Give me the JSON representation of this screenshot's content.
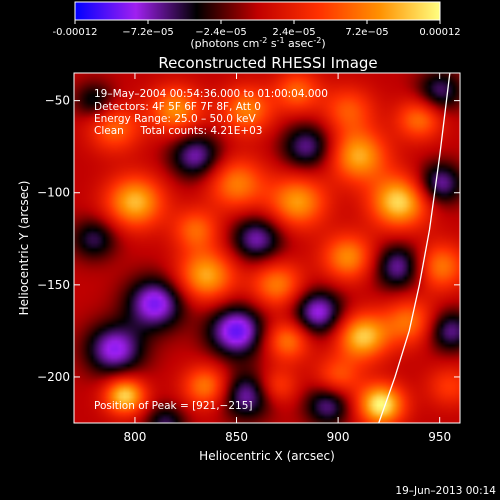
{
  "chart_data": {
    "type": "heatmap",
    "title": "Reconstructed RHESSI Image",
    "xlabel": "Heliocentric X (arcsec)",
    "ylabel": "Heliocentric Y (arcsec)",
    "xlim": [
      770,
      960
    ],
    "ylim": [
      -225,
      -35
    ],
    "x_ticks": [
      800,
      850,
      900,
      950
    ],
    "y_ticks": [
      -50,
      -100,
      -150,
      -200
    ],
    "colorbar": {
      "min": -0.00012,
      "max": 0.00012,
      "tick_labels": [
        "-0.00012",
        "−7.2e−05",
        "−2.4e−05",
        "2.4e−05",
        "7.2e−05",
        "0.00012"
      ],
      "units_label": "(photons cm",
      "units_exp1": "-2",
      "units_mid": " s",
      "units_exp2": "-1",
      "units_end": " asec",
      "units_exp3": "-2",
      "units_close": ")"
    },
    "annotations": [
      "19–May–2004 00:54:36.000 to 01:00:04.000",
      "Detectors: 4F 5F 6F 7F 8F, Att 0",
      "Energy Range: 25.0 – 50.0 keV",
      "Clean     Total counts: 4.21E+03"
    ],
    "peak_label": "Position of Peak = [921,−215]",
    "peak": [
      921,
      -215
    ],
    "footer_date": "19–Jun–2013 00:14",
    "colormap": [
      "#0000ff",
      "#a020f0",
      "#000000",
      "#c00000",
      "#ff3000",
      "#ff9000",
      "#ffff80"
    ],
    "blobs": [
      {
        "x": 921,
        "y": -215,
        "a": 1.0,
        "r": 8
      },
      {
        "x": 800,
        "y": -105,
        "a": 0.8,
        "r": 10
      },
      {
        "x": 830,
        "y": -120,
        "a": 0.5,
        "r": 8
      },
      {
        "x": 850,
        "y": -95,
        "a": 0.6,
        "r": 10
      },
      {
        "x": 880,
        "y": -105,
        "a": 0.7,
        "r": 10
      },
      {
        "x": 910,
        "y": -80,
        "a": 0.75,
        "r": 10
      },
      {
        "x": 905,
        "y": -55,
        "a": 0.45,
        "r": 9
      },
      {
        "x": 930,
        "y": -105,
        "a": 0.9,
        "r": 10
      },
      {
        "x": 940,
        "y": -60,
        "a": 0.55,
        "r": 8
      },
      {
        "x": 950,
        "y": -140,
        "a": 0.6,
        "r": 9
      },
      {
        "x": 835,
        "y": -145,
        "a": 0.75,
        "r": 10
      },
      {
        "x": 870,
        "y": -150,
        "a": 0.6,
        "r": 9
      },
      {
        "x": 905,
        "y": -135,
        "a": 0.65,
        "r": 9
      },
      {
        "x": 935,
        "y": -170,
        "a": 0.55,
        "r": 9
      },
      {
        "x": 912,
        "y": -178,
        "a": 0.85,
        "r": 9
      },
      {
        "x": 875,
        "y": -180,
        "a": 0.6,
        "r": 8
      },
      {
        "x": 795,
        "y": -210,
        "a": 0.9,
        "r": 7
      },
      {
        "x": 835,
        "y": -205,
        "a": 0.6,
        "r": 8
      },
      {
        "x": 870,
        "y": -205,
        "a": 0.4,
        "r": 7
      },
      {
        "x": 900,
        "y": -200,
        "a": 0.45,
        "r": 8
      },
      {
        "x": 790,
        "y": -65,
        "a": 0.5,
        "r": 9
      },
      {
        "x": 820,
        "y": -55,
        "a": 0.65,
        "r": 9
      },
      {
        "x": 855,
        "y": -55,
        "a": 0.6,
        "r": 9
      },
      {
        "x": 880,
        "y": -45,
        "a": 0.5,
        "r": 8
      },
      {
        "x": 955,
        "y": -205,
        "a": 0.35,
        "r": 8
      },
      {
        "x": 810,
        "y": -160,
        "a": -0.75,
        "r": 10
      },
      {
        "x": 850,
        "y": -175,
        "a": -0.8,
        "r": 10
      },
      {
        "x": 790,
        "y": -185,
        "a": -0.7,
        "r": 10
      },
      {
        "x": 860,
        "y": -125,
        "a": -0.6,
        "r": 9
      },
      {
        "x": 890,
        "y": -165,
        "a": -0.7,
        "r": 9
      },
      {
        "x": 930,
        "y": -140,
        "a": -0.6,
        "r": 9
      },
      {
        "x": 885,
        "y": -75,
        "a": -0.55,
        "r": 9
      },
      {
        "x": 830,
        "y": -80,
        "a": -0.6,
        "r": 9
      },
      {
        "x": 950,
        "y": -95,
        "a": -0.6,
        "r": 8
      },
      {
        "x": 955,
        "y": -175,
        "a": -0.55,
        "r": 8
      },
      {
        "x": 855,
        "y": -210,
        "a": -0.6,
        "r": 9
      },
      {
        "x": 895,
        "y": -215,
        "a": -0.55,
        "r": 8
      },
      {
        "x": 780,
        "y": -125,
        "a": -0.45,
        "r": 8
      },
      {
        "x": 780,
        "y": -50,
        "a": -0.4,
        "r": 7
      },
      {
        "x": 950,
        "y": -45,
        "a": -0.5,
        "r": 8
      },
      {
        "x": 815,
        "y": -225,
        "a": -0.45,
        "r": 7
      }
    ],
    "limb": [
      [
        955,
        -35
      ],
      [
        950,
        -80
      ],
      [
        945,
        -120
      ],
      [
        940,
        -150
      ],
      [
        935,
        -175
      ],
      [
        928,
        -200
      ],
      [
        920,
        -225
      ]
    ]
  }
}
